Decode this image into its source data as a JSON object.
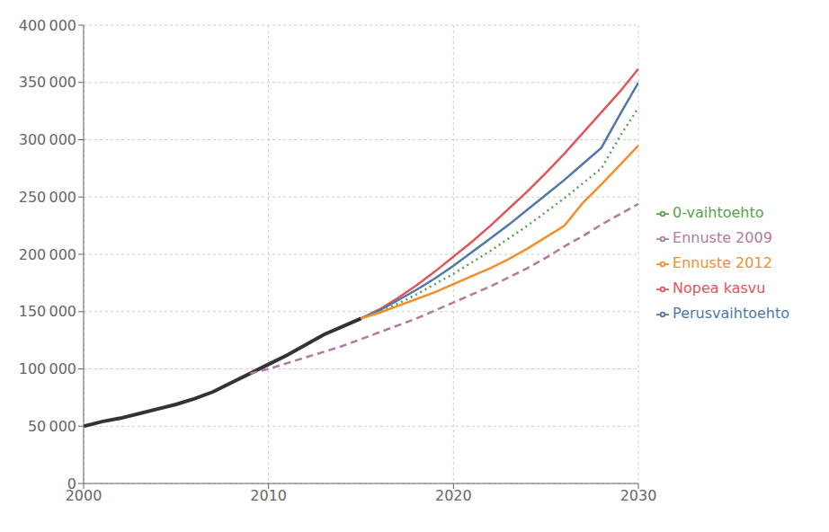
{
  "chart_data": {
    "type": "line",
    "xlim": [
      2000,
      2030
    ],
    "xticks": [
      2000,
      2010,
      2020,
      2030
    ],
    "ylim": [
      0,
      400000
    ],
    "yticks": [
      0,
      {
        "value": 50000,
        "label": "50 000"
      },
      {
        "value": 100000,
        "label": "100 000"
      },
      {
        "value": 150000,
        "label": "150 000"
      },
      {
        "value": 200000,
        "label": "200 000"
      },
      {
        "value": 250000,
        "label": "250 000"
      },
      {
        "value": 300000,
        "label": "300 000"
      },
      {
        "value": 350000,
        "label": "350 000"
      },
      {
        "value": 400000,
        "label": "400 000"
      }
    ],
    "grid": true,
    "legend": "right",
    "series": [
      {
        "color": "#333333",
        "line_style": "solid",
        "x": [
          2000,
          2001,
          2002,
          2003,
          2004,
          2005,
          2006,
          2007,
          2008,
          2009,
          2010,
          2011,
          2012,
          2013,
          2014,
          2015
        ],
        "values": [
          50000,
          54000,
          57000,
          61000,
          65000,
          69000,
          74000,
          80000,
          88000,
          96000,
          104000,
          112000,
          121000,
          130000,
          137000,
          144000
        ]
      },
      {
        "name": "Nopea kasvu",
        "color": "#e15759",
        "line_style": "solid",
        "x": [
          2015,
          2016,
          2017,
          2018,
          2019,
          2020,
          2021,
          2022,
          2023,
          2024,
          2025,
          2026,
          2027,
          2028,
          2029,
          2030
        ],
        "values": [
          144000,
          152000,
          162000,
          173000,
          185000,
          198000,
          211000,
          225000,
          240000,
          255000,
          271000,
          288000,
          306000,
          324000,
          342000,
          362000
        ]
      },
      {
        "name": "Perusvaihtoehto",
        "color": "#4e79a7",
        "line_style": "solid",
        "x": [
          2015,
          2016,
          2017,
          2018,
          2019,
          2020,
          2021,
          2022,
          2023,
          2024,
          2025,
          2026,
          2027,
          2028,
          2029,
          2030
        ],
        "values": [
          144000,
          151000,
          160000,
          169000,
          179000,
          190000,
          202000,
          214000,
          226000,
          239000,
          252000,
          265000,
          279000,
          293000,
          322000,
          350000
        ]
      },
      {
        "name": "0-vaihtoehto",
        "color": "#59a14f",
        "line_style": "dotted",
        "x": [
          2015,
          2016,
          2017,
          2018,
          2019,
          2020,
          2021,
          2022,
          2023,
          2024,
          2025,
          2026,
          2027,
          2028,
          2029,
          2030
        ],
        "values": [
          144000,
          150000,
          157000,
          165000,
          174000,
          183000,
          193000,
          203000,
          214000,
          225000,
          237000,
          249000,
          262000,
          275000,
          303000,
          328000
        ]
      },
      {
        "name": "Ennuste 2012",
        "color": "#f28e2b",
        "line_style": "solid",
        "x": [
          2015,
          2016,
          2017,
          2018,
          2019,
          2020,
          2021,
          2022,
          2023,
          2024,
          2025,
          2026,
          2027,
          2028,
          2029,
          2030
        ],
        "values": [
          144000,
          149000,
          155000,
          161000,
          167000,
          174000,
          181000,
          188000,
          196000,
          205000,
          215000,
          225000,
          245000,
          261000,
          278000,
          295000
        ]
      },
      {
        "name": "Ennuste 2009",
        "color": "#b07aa1",
        "line_style": "dashed",
        "x": [
          2009,
          2010,
          2011,
          2012,
          2013,
          2014,
          2015,
          2016,
          2017,
          2018,
          2019,
          2020,
          2021,
          2022,
          2023,
          2024,
          2025,
          2026,
          2027,
          2028,
          2029,
          2030
        ],
        "values": [
          96000,
          100000,
          105000,
          110000,
          115000,
          120000,
          126000,
          132000,
          138000,
          144000,
          151000,
          158000,
          165000,
          172000,
          180000,
          188000,
          197000,
          207000,
          216000,
          226000,
          235000,
          244000
        ]
      }
    ]
  }
}
